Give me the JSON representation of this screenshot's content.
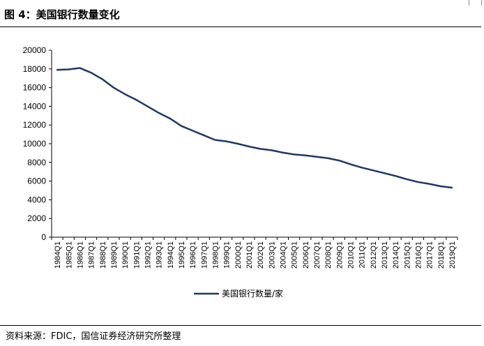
{
  "figure": {
    "title": "图 4：美国银行数量变化",
    "source": "资料来源：FDIC，国信证券经济研究所整理"
  },
  "chart_data": {
    "type": "line",
    "title": "",
    "xlabel": "",
    "ylabel": "",
    "ylim": [
      0,
      20000
    ],
    "yticks": [
      0,
      2000,
      4000,
      6000,
      8000,
      10000,
      12000,
      14000,
      16000,
      18000,
      20000
    ],
    "grid": false,
    "legend_position": "bottom-center",
    "categories": [
      "1984Q1",
      "1985Q1",
      "1986Q1",
      "1987Q1",
      "1988Q1",
      "1989Q1",
      "1990Q1",
      "1991Q1",
      "1992Q1",
      "1993Q1",
      "1994Q1",
      "1995Q1",
      "1996Q1",
      "1997Q1",
      "1998Q1",
      "1999Q1",
      "2000Q1",
      "2001Q1",
      "2002Q1",
      "2003Q1",
      "2004Q1",
      "2005Q1",
      "2006Q1",
      "2007Q1",
      "2008Q1",
      "2009Q1",
      "2010Q1",
      "2011Q1",
      "2012Q1",
      "2013Q1",
      "2014Q1",
      "2015Q1",
      "2016Q1",
      "2017Q1",
      "2018Q1",
      "2019Q1"
    ],
    "series": [
      {
        "name": "美国银行数量/家",
        "color": "#1f3864",
        "values": [
          17900,
          17950,
          18100,
          17600,
          16900,
          16000,
          15300,
          14700,
          14000,
          13300,
          12700,
          11900,
          11400,
          10900,
          10400,
          10250,
          10000,
          9700,
          9450,
          9300,
          9050,
          8850,
          8750,
          8600,
          8450,
          8200,
          7800,
          7450,
          7150,
          6850,
          6550,
          6200,
          5900,
          5700,
          5450,
          5300
        ]
      }
    ]
  }
}
